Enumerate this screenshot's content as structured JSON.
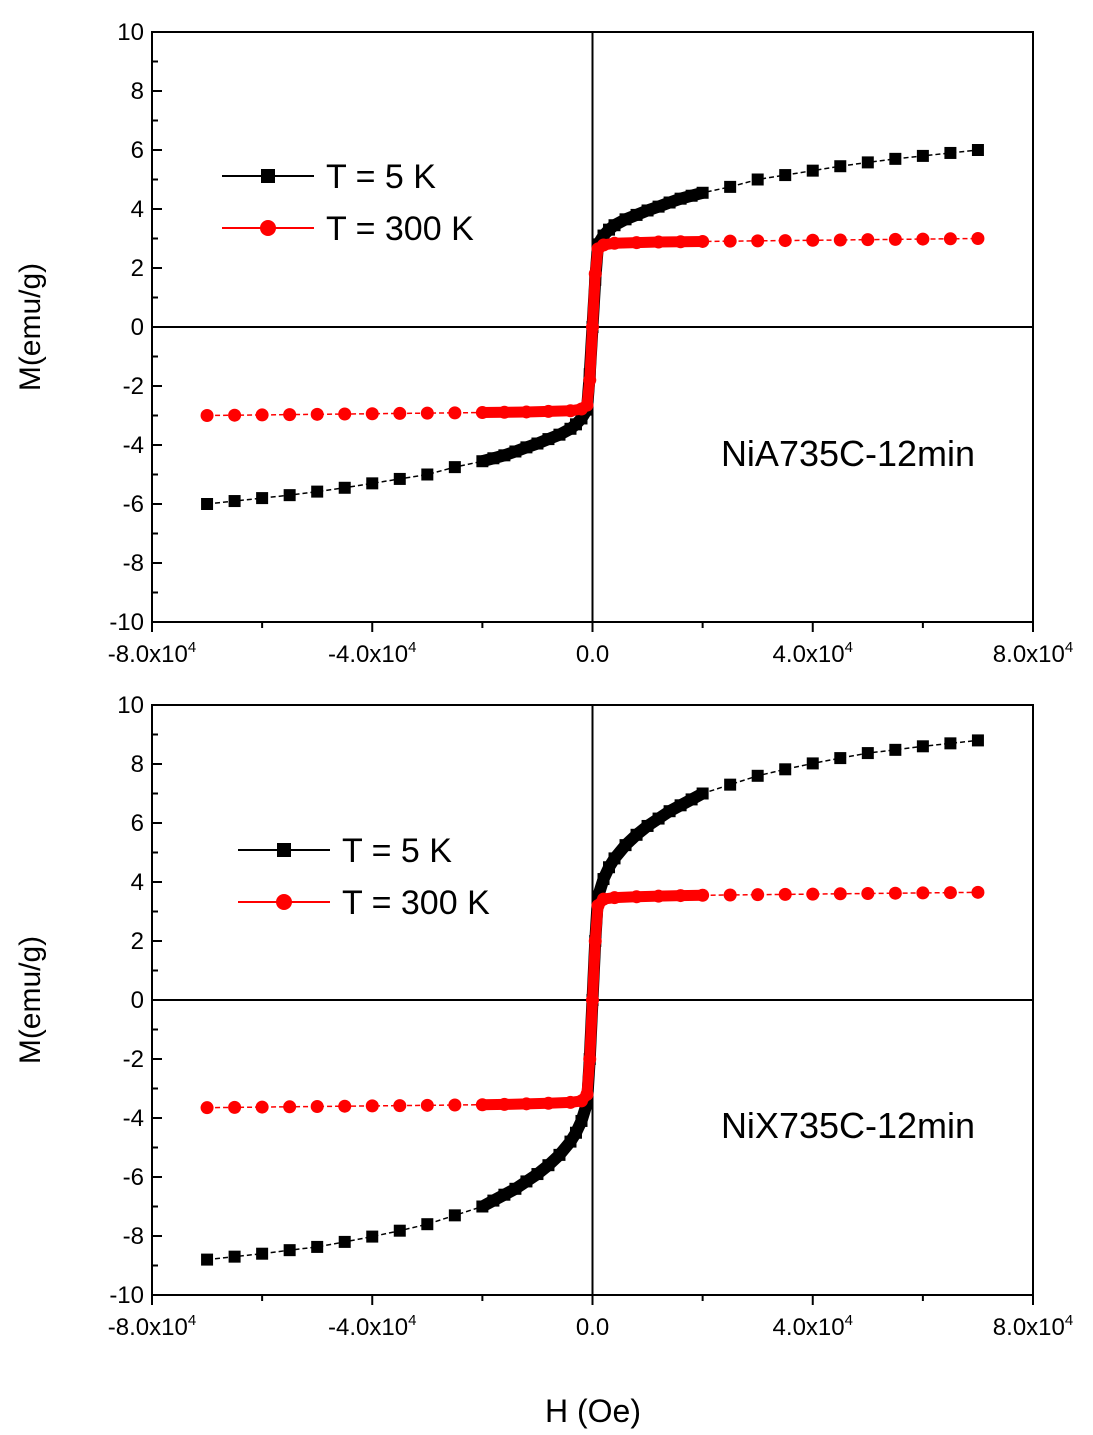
{
  "figure": {
    "xlabel": "H (Oe)"
  },
  "colors": {
    "series_5k": "#000000",
    "series_300k": "#ff0000",
    "axes": "#000000"
  },
  "chart_data": [
    {
      "type": "line",
      "annotation": "NiA735C-12min",
      "ylabel": "M(emu/g)",
      "xlabel": "",
      "xlim": [
        -80000,
        80000
      ],
      "ylim": [
        -10,
        10
      ],
      "x_ticks": [
        -80000,
        -40000,
        0,
        40000,
        80000
      ],
      "x_tick_labels": [
        {
          "base": "-8.0x10",
          "exp": "4"
        },
        {
          "base": "-4.0x10",
          "exp": "4"
        },
        {
          "base": "0.0",
          "exp": ""
        },
        {
          "base": "4.0x10",
          "exp": "4"
        },
        {
          "base": "8.0x10",
          "exp": "4"
        }
      ],
      "y_ticks": [
        -10,
        -8,
        -6,
        -4,
        -2,
        0,
        2,
        4,
        6,
        8,
        10
      ],
      "legend": "upper-left",
      "series": [
        {
          "name": "T = 5 K",
          "color": "#000000",
          "marker": "square",
          "x": [
            -70000,
            -65000,
            -60000,
            -55000,
            -50000,
            -45000,
            -40000,
            -35000,
            -30000,
            -25000,
            -20000,
            -18000,
            -16000,
            -14000,
            -12000,
            -10000,
            -8000,
            -6000,
            -4000,
            -3000,
            -2000,
            -1000,
            -500,
            0,
            500,
            1000,
            2000,
            3000,
            4000,
            6000,
            8000,
            10000,
            12000,
            14000,
            16000,
            18000,
            20000,
            25000,
            30000,
            35000,
            40000,
            45000,
            50000,
            55000,
            60000,
            65000,
            70000
          ],
          "y": [
            -6.0,
            -5.9,
            -5.8,
            -5.7,
            -5.58,
            -5.45,
            -5.3,
            -5.15,
            -5.0,
            -4.75,
            -4.55,
            -4.45,
            -4.35,
            -4.22,
            -4.08,
            -3.95,
            -3.8,
            -3.65,
            -3.45,
            -3.3,
            -3.1,
            -2.8,
            -1.6,
            0,
            1.6,
            2.8,
            3.1,
            3.3,
            3.45,
            3.65,
            3.8,
            3.95,
            4.08,
            4.22,
            4.35,
            4.45,
            4.55,
            4.75,
            5.0,
            5.15,
            5.3,
            5.45,
            5.58,
            5.7,
            5.8,
            5.9,
            6.0
          ]
        },
        {
          "name": "T = 300 K",
          "color": "#ff0000",
          "marker": "circle",
          "x": [
            -70000,
            -65000,
            -60000,
            -55000,
            -50000,
            -45000,
            -40000,
            -35000,
            -30000,
            -25000,
            -20000,
            -16000,
            -12000,
            -8000,
            -4000,
            -2000,
            -1000,
            -500,
            0,
            500,
            1000,
            2000,
            4000,
            8000,
            12000,
            16000,
            20000,
            25000,
            30000,
            35000,
            40000,
            45000,
            50000,
            55000,
            60000,
            65000,
            70000
          ],
          "y": [
            -3.0,
            -2.99,
            -2.98,
            -2.97,
            -2.96,
            -2.95,
            -2.94,
            -2.93,
            -2.92,
            -2.91,
            -2.9,
            -2.89,
            -2.88,
            -2.86,
            -2.84,
            -2.78,
            -2.65,
            -1.8,
            0,
            1.8,
            2.65,
            2.78,
            2.84,
            2.86,
            2.88,
            2.89,
            2.9,
            2.91,
            2.92,
            2.93,
            2.94,
            2.95,
            2.96,
            2.97,
            2.98,
            2.99,
            3.0
          ]
        }
      ]
    },
    {
      "type": "line",
      "annotation": "NiX735C-12min",
      "ylabel": "M(emu/g)",
      "xlabel": "H (Oe)",
      "xlim": [
        -80000,
        80000
      ],
      "ylim": [
        -10,
        10
      ],
      "x_ticks": [
        -80000,
        -40000,
        0,
        40000,
        80000
      ],
      "x_tick_labels": [
        {
          "base": "-8.0x10",
          "exp": "4"
        },
        {
          "base": "-4.0x10",
          "exp": "4"
        },
        {
          "base": "0.0",
          "exp": ""
        },
        {
          "base": "4.0x10",
          "exp": "4"
        },
        {
          "base": "8.0x10",
          "exp": "4"
        }
      ],
      "y_ticks": [
        -10,
        -8,
        -6,
        -4,
        -2,
        0,
        2,
        4,
        6,
        8,
        10
      ],
      "legend": "upper-left",
      "series": [
        {
          "name": "T = 5 K",
          "color": "#000000",
          "marker": "square",
          "x": [
            -70000,
            -65000,
            -60000,
            -55000,
            -50000,
            -45000,
            -40000,
            -35000,
            -30000,
            -25000,
            -20000,
            -18000,
            -16000,
            -14000,
            -12000,
            -10000,
            -8000,
            -6000,
            -4000,
            -3000,
            -2000,
            -1000,
            -500,
            0,
            500,
            1000,
            2000,
            3000,
            4000,
            6000,
            8000,
            10000,
            12000,
            14000,
            16000,
            18000,
            20000,
            25000,
            30000,
            35000,
            40000,
            45000,
            50000,
            55000,
            60000,
            65000,
            70000
          ],
          "y": [
            -8.8,
            -8.7,
            -8.6,
            -8.48,
            -8.37,
            -8.2,
            -8.02,
            -7.82,
            -7.6,
            -7.3,
            -7.0,
            -6.8,
            -6.6,
            -6.4,
            -6.15,
            -5.9,
            -5.6,
            -5.25,
            -4.8,
            -4.5,
            -4.1,
            -3.5,
            -2.0,
            0,
            2.0,
            3.5,
            4.1,
            4.5,
            4.8,
            5.25,
            5.6,
            5.9,
            6.15,
            6.4,
            6.6,
            6.8,
            7.0,
            7.3,
            7.6,
            7.82,
            8.02,
            8.2,
            8.37,
            8.48,
            8.6,
            8.7,
            8.8
          ]
        },
        {
          "name": "T = 300 K",
          "color": "#ff0000",
          "marker": "circle",
          "x": [
            -70000,
            -65000,
            -60000,
            -55000,
            -50000,
            -45000,
            -40000,
            -35000,
            -30000,
            -25000,
            -20000,
            -16000,
            -12000,
            -8000,
            -4000,
            -2000,
            -1000,
            -500,
            0,
            500,
            1000,
            2000,
            4000,
            8000,
            12000,
            16000,
            20000,
            25000,
            30000,
            35000,
            40000,
            45000,
            50000,
            55000,
            60000,
            65000,
            70000
          ],
          "y": [
            -3.65,
            -3.64,
            -3.63,
            -3.62,
            -3.61,
            -3.6,
            -3.59,
            -3.58,
            -3.57,
            -3.56,
            -3.55,
            -3.54,
            -3.52,
            -3.5,
            -3.47,
            -3.42,
            -3.2,
            -2.0,
            0,
            2.0,
            3.2,
            3.42,
            3.47,
            3.5,
            3.52,
            3.54,
            3.55,
            3.56,
            3.57,
            3.58,
            3.59,
            3.6,
            3.61,
            3.62,
            3.63,
            3.64,
            3.65
          ]
        }
      ]
    }
  ]
}
